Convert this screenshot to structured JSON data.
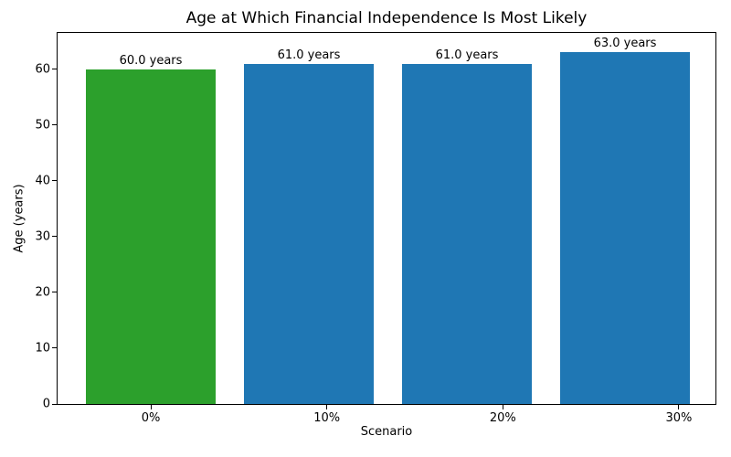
{
  "chart_data": {
    "type": "bar",
    "title": "Age at Which Financial Independence Is Most Likely",
    "xlabel": "Scenario",
    "ylabel": "Age (years)",
    "categories": [
      "0%",
      "10%",
      "20%",
      "30%"
    ],
    "values": [
      60.0,
      61.0,
      61.0,
      63.0
    ],
    "bar_labels": [
      "60.0 years",
      "61.0 years",
      "61.0 years",
      "63.0 years"
    ],
    "bar_colors": [
      "#2ca02c",
      "#1f77b4",
      "#1f77b4",
      "#1f77b4"
    ],
    "ylim": [
      0,
      66.5
    ],
    "yticks": [
      0,
      10,
      20,
      30,
      40,
      50,
      60
    ],
    "grid": false,
    "legend_position": "none",
    "background_color": "#ffffff",
    "spine_color": "#000000"
  }
}
